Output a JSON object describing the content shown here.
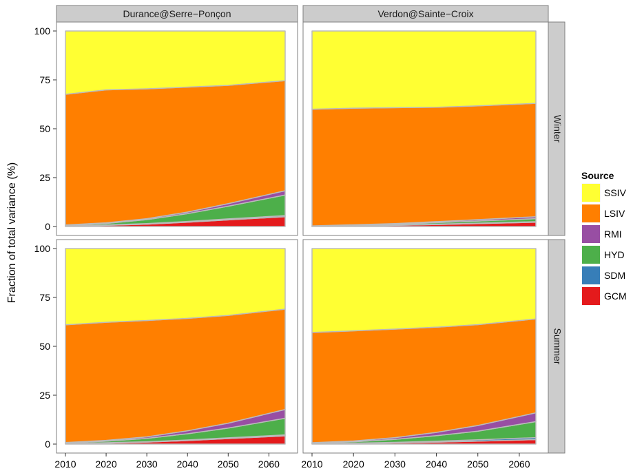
{
  "chart_data": {
    "type": "area",
    "stacked": true,
    "ylabel": "Fraction of total variance (%)",
    "xlabel": "",
    "xlim": [
      2010,
      2064
    ],
    "ylim": [
      0,
      100
    ],
    "x_ticks": [
      2010,
      2020,
      2030,
      2040,
      2050,
      2060
    ],
    "y_ticks": [
      0,
      25,
      50,
      75,
      100
    ],
    "x": [
      2010,
      2020,
      2030,
      2040,
      2050,
      2064
    ],
    "column_facets": [
      "Durance@Serre−Ponçon",
      "Verdon@Sainte−Croix"
    ],
    "row_facets": [
      "Winter",
      "Summer"
    ],
    "legend": {
      "title": "Source",
      "placement": "right",
      "entries": [
        {
          "key": "SSIV",
          "label": "SSIV",
          "color": "#FFFF33"
        },
        {
          "key": "LSIV",
          "label": "LSIV",
          "color": "#FF7F00"
        },
        {
          "key": "RMI",
          "label": "RMI",
          "color": "#984EA3"
        },
        {
          "key": "HYD",
          "label": "HYD",
          "color": "#4DAF4A"
        },
        {
          "key": "SDM",
          "label": "SDM",
          "color": "#377EB8"
        },
        {
          "key": "GCM",
          "label": "GCM",
          "color": "#E41A1C"
        }
      ]
    },
    "stack_order": [
      "GCM",
      "SDM",
      "HYD",
      "RMI",
      "LSIV",
      "SSIV"
    ],
    "panels": [
      {
        "column": "Durance@Serre−Ponçon",
        "row": "Winter",
        "series": [
          {
            "name": "GCM",
            "values": [
              0.2,
              0.6,
              1.2,
              2.2,
              3.4,
              5.0
            ]
          },
          {
            "name": "SDM",
            "values": [
              0.1,
              0.2,
              0.3,
              0.4,
              0.5,
              0.6
            ]
          },
          {
            "name": "HYD",
            "values": [
              0.3,
              0.8,
              2.0,
              4.0,
              6.5,
              10.5
            ]
          },
          {
            "name": "RMI",
            "values": [
              0.2,
              0.3,
              0.5,
              0.8,
              1.3,
              2.2
            ]
          },
          {
            "name": "LSIV",
            "values": [
              66.8,
              68.0,
              66.4,
              63.9,
              60.5,
              56.3
            ]
          },
          {
            "name": "SSIV",
            "values": [
              32.4,
              30.1,
              29.6,
              28.7,
              27.8,
              25.4
            ]
          }
        ]
      },
      {
        "column": "Verdon@Sainte−Croix",
        "row": "Winter",
        "series": [
          {
            "name": "GCM",
            "values": [
              0.1,
              0.3,
              0.6,
              1.0,
              1.5,
              2.2
            ]
          },
          {
            "name": "SDM",
            "values": [
              0.0,
              0.1,
              0.1,
              0.2,
              0.2,
              0.3
            ]
          },
          {
            "name": "HYD",
            "values": [
              0.1,
              0.3,
              0.5,
              0.8,
              1.1,
              1.5
            ]
          },
          {
            "name": "RMI",
            "values": [
              0.1,
              0.2,
              0.3,
              0.5,
              0.7,
              1.0
            ]
          },
          {
            "name": "LSIV",
            "values": [
              59.7,
              59.6,
              59.3,
              58.5,
              58.2,
              58.0
            ]
          },
          {
            "name": "SSIV",
            "values": [
              40.0,
              39.5,
              39.2,
              39.0,
              38.3,
              37.0
            ]
          }
        ]
      },
      {
        "column": "Durance@Serre−Ponçon",
        "row": "Summer",
        "series": [
          {
            "name": "GCM",
            "values": [
              0.2,
              0.5,
              1.0,
              1.8,
              2.8,
              4.2
            ]
          },
          {
            "name": "SDM",
            "values": [
              0.1,
              0.2,
              0.2,
              0.3,
              0.4,
              0.5
            ]
          },
          {
            "name": "HYD",
            "values": [
              0.3,
              0.8,
              1.7,
              3.2,
              5.0,
              8.5
            ]
          },
          {
            "name": "RMI",
            "values": [
              0.2,
              0.4,
              0.8,
              1.5,
              2.5,
              4.5
            ]
          },
          {
            "name": "LSIV",
            "values": [
              60.2,
              60.4,
              59.5,
              57.5,
              55.1,
              51.3
            ]
          },
          {
            "name": "SSIV",
            "values": [
              39.0,
              37.7,
              36.8,
              35.7,
              34.2,
              31.0
            ]
          }
        ]
      },
      {
        "column": "Verdon@Sainte−Croix",
        "row": "Summer",
        "series": [
          {
            "name": "GCM",
            "values": [
              0.1,
              0.3,
              0.6,
              1.0,
              1.5,
              2.3
            ]
          },
          {
            "name": "SDM",
            "values": [
              0.1,
              0.2,
              0.3,
              0.5,
              0.7,
              1.0
            ]
          },
          {
            "name": "HYD",
            "values": [
              0.3,
              0.7,
              1.5,
              2.8,
              4.4,
              8.2
            ]
          },
          {
            "name": "RMI",
            "values": [
              0.2,
              0.4,
              0.9,
              1.7,
              2.9,
              4.5
            ]
          },
          {
            "name": "LSIV",
            "values": [
              56.4,
              56.3,
              55.5,
              53.8,
              51.6,
              48.0
            ]
          },
          {
            "name": "SSIV",
            "values": [
              42.9,
              42.1,
              41.2,
              40.2,
              38.9,
              36.0
            ]
          }
        ]
      }
    ]
  }
}
